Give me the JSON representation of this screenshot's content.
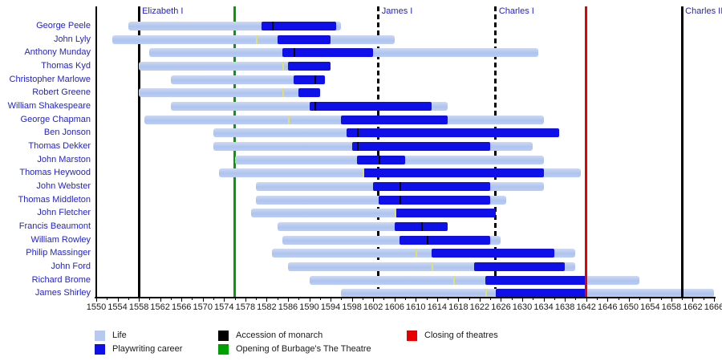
{
  "chart_data": {
    "type": "bar",
    "subtype": "gantt-timeline",
    "title": "",
    "xlabel": "",
    "ylabel": "",
    "x_range": [
      1550,
      1666
    ],
    "x_tick_step_labeled": 4,
    "x_tick_step_minor": 2,
    "x_tick_labels": [
      1550,
      1554,
      1558,
      1562,
      1566,
      1570,
      1574,
      1578,
      1582,
      1586,
      1590,
      1594,
      1598,
      1602,
      1606,
      1610,
      1614,
      1618,
      1622,
      1626,
      1630,
      1634,
      1638,
      1642,
      1646,
      1650,
      1654,
      1658,
      1662,
      1666
    ],
    "colors": {
      "life": "#b7c9ef",
      "career": "#0f0fe8",
      "monarch_line": "#000000",
      "theatre_open": "#00a000",
      "theatre_close": "#e80000",
      "name_text": "#2424c8",
      "marker_yellow": "#e0e070",
      "marker_black": "#000000"
    },
    "playwrights": [
      {
        "name": "George Peele",
        "life": [
          1556,
          1596
        ],
        "career": [
          1581,
          1595
        ],
        "marker": {
          "year": 1583,
          "color": "black"
        }
      },
      {
        "name": "John Lyly",
        "life": [
          1553,
          1606
        ],
        "career": [
          1584,
          1594
        ],
        "marker": {
          "year": 1580,
          "color": "yellow"
        }
      },
      {
        "name": "Anthony Munday",
        "life": [
          1560,
          1633
        ],
        "career": [
          1585,
          1602
        ],
        "marker": {
          "year": 1587,
          "color": "black"
        }
      },
      {
        "name": "Thomas Kyd",
        "life": [
          1558,
          1594
        ],
        "career": [
          1586,
          1594
        ],
        "marker": {
          "year": 1585,
          "color": "yellow"
        }
      },
      {
        "name": "Christopher Marlowe",
        "life": [
          1564,
          1593
        ],
        "career": [
          1587,
          1593
        ],
        "marker": {
          "year": 1591,
          "color": "black"
        }
      },
      {
        "name": "Robert Greene",
        "life": [
          1558,
          1592
        ],
        "career": [
          1588,
          1592
        ],
        "marker": {
          "year": 1585,
          "color": "yellow"
        }
      },
      {
        "name": "William Shakespeare",
        "life": [
          1564,
          1616
        ],
        "career": [
          1590,
          1613
        ],
        "marker": {
          "year": 1591,
          "color": "black"
        }
      },
      {
        "name": "George Chapman",
        "life": [
          1559,
          1634
        ],
        "career": [
          1596,
          1616
        ],
        "marker": {
          "year": 1586,
          "color": "yellow"
        }
      },
      {
        "name": "Ben Jonson",
        "life": [
          1572,
          1637
        ],
        "career": [
          1597,
          1637
        ],
        "marker": {
          "year": 1599,
          "color": "black"
        }
      },
      {
        "name": "Thomas Dekker",
        "life": [
          1572,
          1632
        ],
        "career": [
          1598,
          1624
        ],
        "marker": {
          "year": 1599,
          "color": "black"
        }
      },
      {
        "name": "John Marston",
        "life": [
          1576,
          1634
        ],
        "career": [
          1599,
          1608
        ],
        "marker": {
          "year": 1603,
          "color": "black"
        }
      },
      {
        "name": "Thomas Heywood",
        "life": [
          1573,
          1641
        ],
        "career": [
          1600,
          1634
        ],
        "marker": {
          "year": 1600,
          "color": "yellow"
        }
      },
      {
        "name": "John Webster",
        "life": [
          1580,
          1634
        ],
        "career": [
          1602,
          1624
        ],
        "marker": {
          "year": 1607,
          "color": "black"
        }
      },
      {
        "name": "Thomas Middleton",
        "life": [
          1580,
          1627
        ],
        "career": [
          1603,
          1624
        ],
        "marker": {
          "year": 1607,
          "color": "black"
        }
      },
      {
        "name": "John Fletcher",
        "life": [
          1579,
          1625
        ],
        "career": [
          1606,
          1625
        ],
        "marker": {
          "year": 1606,
          "color": "yellow"
        }
      },
      {
        "name": "Francis Beaumont",
        "life": [
          1584,
          1616
        ],
        "career": [
          1606,
          1616
        ],
        "marker": {
          "year": 1611,
          "color": "black"
        }
      },
      {
        "name": "William Rowley",
        "life": [
          1585,
          1626
        ],
        "career": [
          1607,
          1624
        ],
        "marker": {
          "year": 1612,
          "color": "black"
        }
      },
      {
        "name": "Philip Massinger",
        "life": [
          1583,
          1640
        ],
        "career": [
          1613,
          1636
        ],
        "marker": {
          "year": 1610,
          "color": "yellow"
        }
      },
      {
        "name": "John Ford",
        "life": [
          1586,
          1640
        ],
        "career": [
          1621,
          1638
        ],
        "marker": {
          "year": 1613,
          "color": "yellow"
        }
      },
      {
        "name": "Richard Brome",
        "life": [
          1590,
          1652
        ],
        "career": [
          1623,
          1642
        ],
        "marker": {
          "year": 1617,
          "color": "yellow"
        }
      },
      {
        "name": "James Shirley",
        "life": [
          1596,
          1666
        ],
        "career": [
          1625,
          1642
        ],
        "marker": {
          "year": 1623,
          "color": "yellow"
        }
      }
    ],
    "events": [
      {
        "label": "Elizabeth I",
        "year": 1558,
        "color_key": "monarch_line",
        "style": "solid",
        "front": false
      },
      {
        "label": "",
        "year": 1576,
        "color_key": "theatre_open",
        "style": "solid",
        "front": false
      },
      {
        "label": "James I",
        "year": 1603,
        "color_key": "monarch_line",
        "style": "dashed",
        "front": false
      },
      {
        "label": "Charles I",
        "year": 1625,
        "color_key": "monarch_line",
        "style": "dashed",
        "front": false
      },
      {
        "label": "",
        "year": 1642,
        "color_key": "theatre_close",
        "style": "solid",
        "front": true
      },
      {
        "label": "Charles II",
        "year": 1660,
        "color_key": "monarch_line",
        "style": "solid",
        "front": true
      }
    ],
    "legend": {
      "position": "bottom",
      "columns": [
        [
          {
            "color_key": "life",
            "label": "Life"
          },
          {
            "color_key": "career",
            "label": "Playwriting career"
          }
        ],
        [
          {
            "color_key": "monarch_line",
            "label": "Accession of monarch"
          },
          {
            "color_key": "theatre_open",
            "label": "Opening of Burbage's The Theatre"
          }
        ],
        [
          {
            "color_key": "theatre_close",
            "label": "Closing of theatres"
          }
        ]
      ]
    }
  }
}
